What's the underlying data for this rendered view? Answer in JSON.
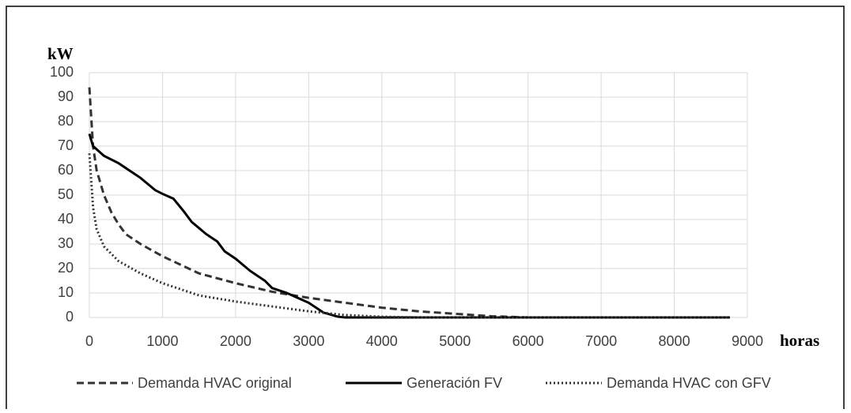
{
  "chart_data": {
    "type": "line",
    "y_label": "kW",
    "x_label": "horas",
    "xlim": [
      0,
      9000
    ],
    "xticks": [
      0,
      1000,
      2000,
      3000,
      4000,
      5000,
      6000,
      7000,
      8000,
      9000
    ],
    "ylim": [
      0,
      100
    ],
    "yticks": [
      0,
      10,
      20,
      30,
      40,
      50,
      60,
      70,
      80,
      90,
      100
    ],
    "grid": true,
    "legend": "bottom",
    "series": [
      {
        "name": "Demanda HVAC original",
        "color": "#333333",
        "line_style": "dashed",
        "x": [
          0,
          50,
          100,
          200,
          300,
          400,
          500,
          700,
          1000,
          1500,
          2000,
          2500,
          3000,
          3500,
          4000,
          4500,
          5000,
          5500,
          6000,
          8760
        ],
        "values": [
          94,
          70,
          60,
          50,
          43,
          38,
          34,
          30,
          25,
          18,
          14,
          10.5,
          8,
          6,
          4,
          2.5,
          1.5,
          0.5,
          0,
          0
        ]
      },
      {
        "name": "Generación FV",
        "color": "#000000",
        "line_style": "solid",
        "x": [
          0,
          50,
          200,
          400,
          600,
          700,
          900,
          1000,
          1150,
          1300,
          1400,
          1600,
          1750,
          1850,
          2000,
          2200,
          2400,
          2500,
          2700,
          3000,
          3200,
          3400,
          3500,
          8760
        ],
        "values": [
          75,
          70,
          66,
          63,
          59,
          57,
          52,
          50.5,
          48.5,
          43,
          39,
          34,
          31,
          27,
          24,
          19,
          15,
          12,
          10,
          6,
          2,
          0.3,
          0,
          0
        ]
      },
      {
        "name": "Demanda HVAC con GFV",
        "color": "#333333",
        "line_style": "dotted",
        "x": [
          0,
          50,
          100,
          200,
          400,
          700,
          1000,
          1500,
          2000,
          2500,
          3000,
          3500,
          4000,
          4500,
          8760
        ],
        "values": [
          67,
          45,
          36,
          29,
          23,
          18,
          14,
          9,
          6.5,
          4.5,
          2.5,
          1,
          0.3,
          0,
          0
        ]
      }
    ]
  }
}
